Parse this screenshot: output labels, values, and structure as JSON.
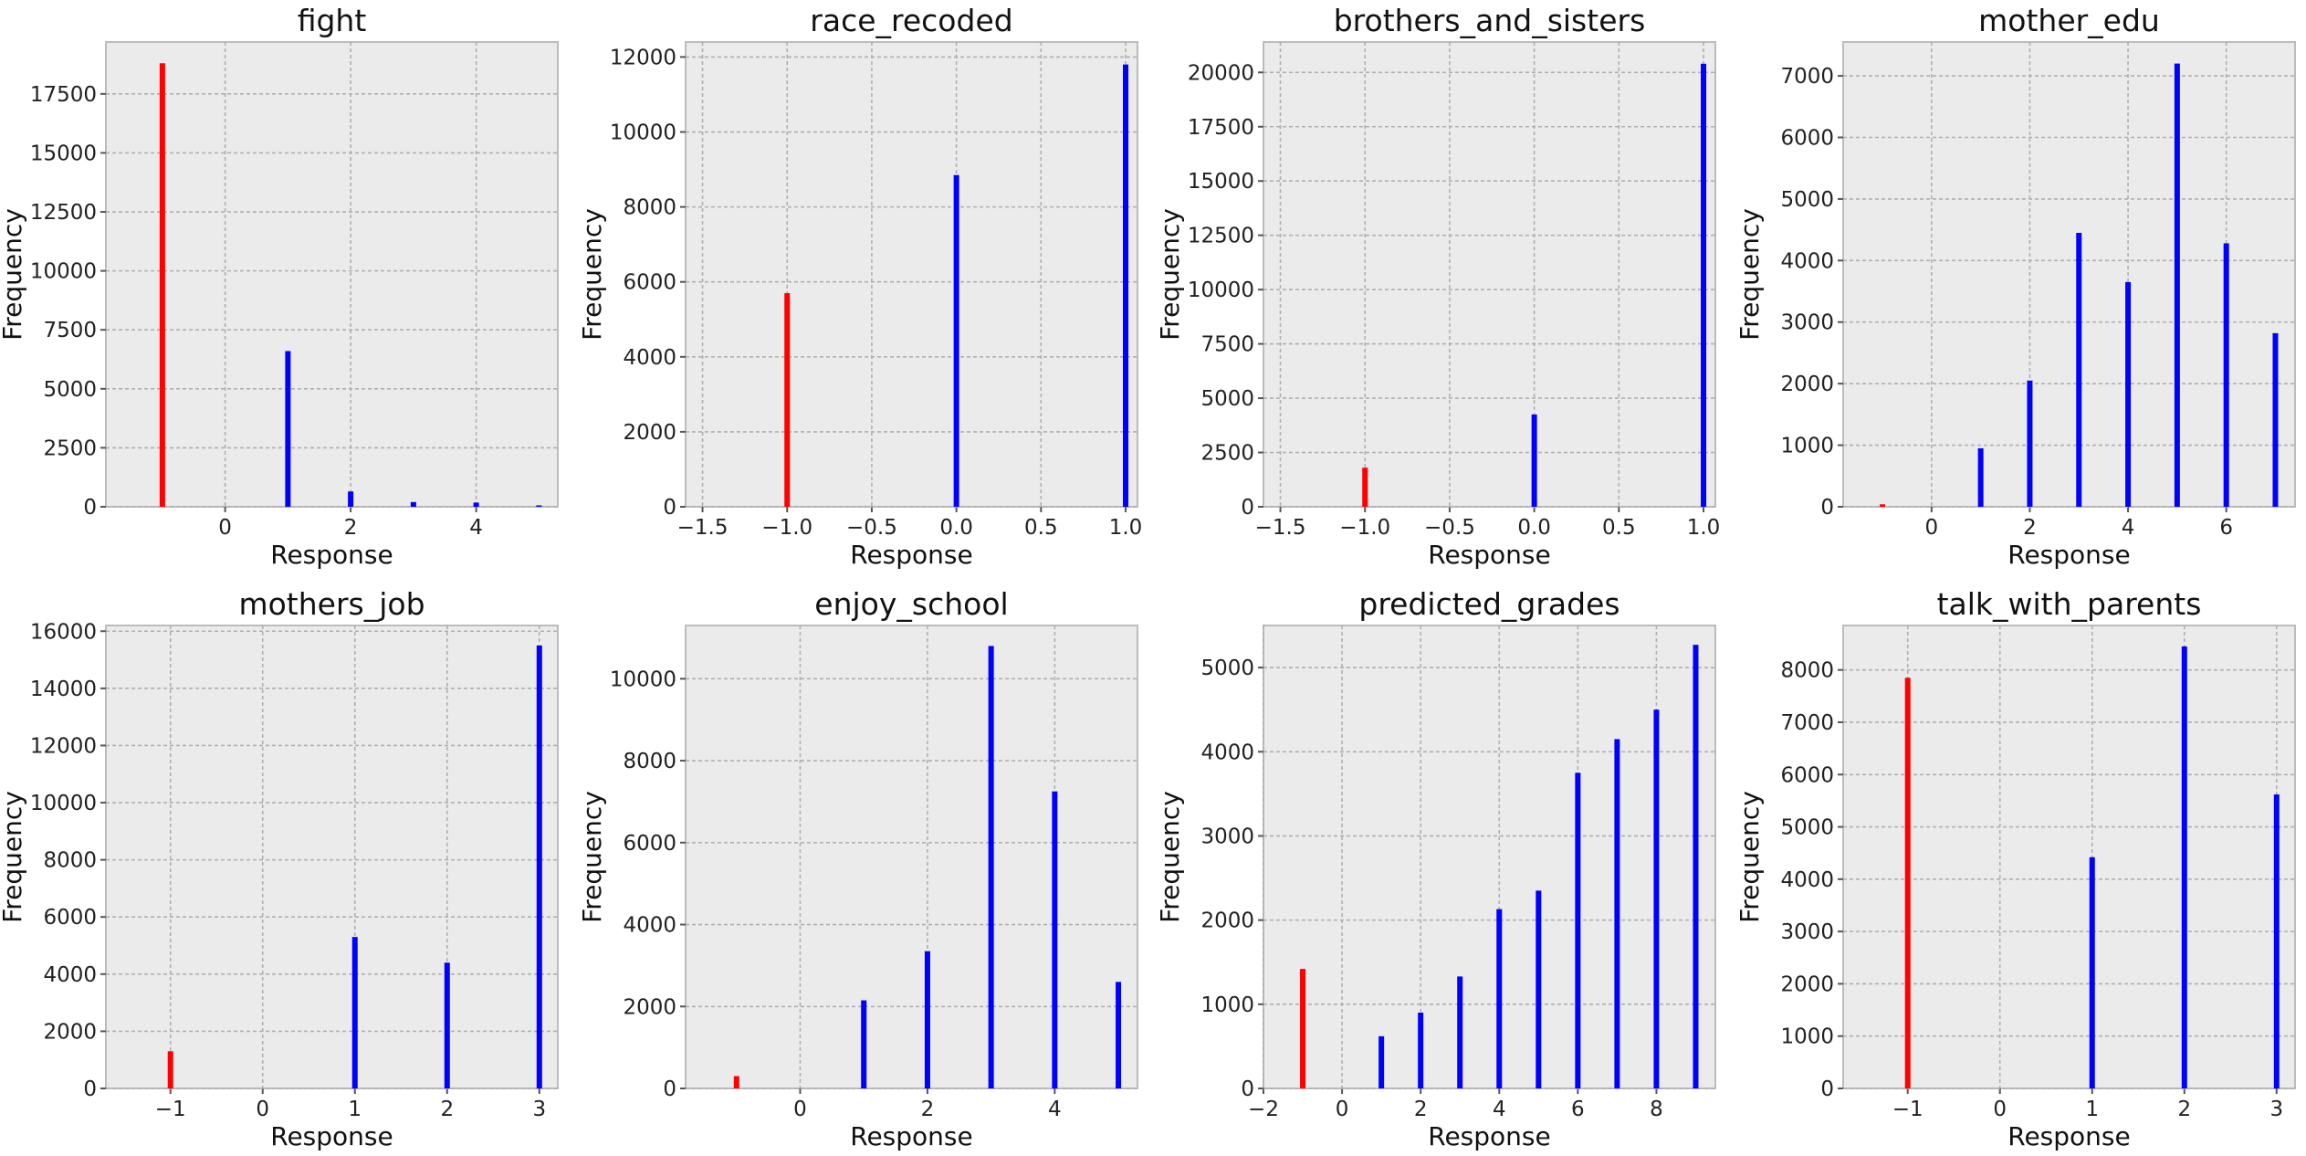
{
  "colors": {
    "missing": "#ff0000",
    "valid": "#0000ff",
    "panel_bg": "#ebebeb"
  },
  "chart_data": [
    {
      "type": "bar",
      "title": "fight",
      "xlabel": "Response",
      "ylabel": "Frequency",
      "xlim": [
        -1.9,
        5.3
      ],
      "ylim": [
        0,
        19700
      ],
      "xticks": [
        0,
        2,
        4
      ],
      "xtick_labels": [
        "0",
        "2",
        "4"
      ],
      "yticks": [
        0,
        2500,
        5000,
        7500,
        10000,
        12500,
        15000,
        17500
      ],
      "ytick_labels": [
        "0",
        "2500",
        "5000",
        "7500",
        "10000",
        "12500",
        "15000",
        "17500"
      ],
      "grid": true,
      "bars": [
        {
          "x": -1,
          "value": 18800,
          "color": "#ff0000"
        },
        {
          "x": 1,
          "value": 6600,
          "color": "#0000ff"
        },
        {
          "x": 2,
          "value": 650,
          "color": "#0000ff"
        },
        {
          "x": 3,
          "value": 200,
          "color": "#0000ff"
        },
        {
          "x": 4,
          "value": 180,
          "color": "#0000ff"
        },
        {
          "x": 5,
          "value": 60,
          "color": "#0000ff"
        }
      ]
    },
    {
      "type": "bar",
      "title": "race_recoded",
      "xlabel": "Response",
      "ylabel": "Frequency",
      "xlim": [
        -1.6,
        1.07
      ],
      "ylim": [
        0,
        12400
      ],
      "xticks": [
        -1.5,
        -1.0,
        -0.5,
        0.0,
        0.5,
        1.0
      ],
      "xtick_labels": [
        "−1.5",
        "−1.0",
        "−0.5",
        "0.0",
        "0.5",
        "1.0"
      ],
      "yticks": [
        0,
        2000,
        4000,
        6000,
        8000,
        10000,
        12000
      ],
      "ytick_labels": [
        "0",
        "2000",
        "4000",
        "6000",
        "8000",
        "10000",
        "12000"
      ],
      "grid": true,
      "bars": [
        {
          "x": -1,
          "value": 5700,
          "color": "#ff0000"
        },
        {
          "x": 0,
          "value": 8850,
          "color": "#0000ff"
        },
        {
          "x": 1,
          "value": 11800,
          "color": "#0000ff"
        }
      ]
    },
    {
      "type": "bar",
      "title": "brothers_and_sisters",
      "xlabel": "Response",
      "ylabel": "Frequency",
      "xlim": [
        -1.6,
        1.07
      ],
      "ylim": [
        0,
        21400
      ],
      "xticks": [
        -1.5,
        -1.0,
        -0.5,
        0.0,
        0.5,
        1.0
      ],
      "xtick_labels": [
        "−1.5",
        "−1.0",
        "−0.5",
        "0.0",
        "0.5",
        "1.0"
      ],
      "yticks": [
        0,
        2500,
        5000,
        7500,
        10000,
        12500,
        15000,
        17500,
        20000
      ],
      "ytick_labels": [
        "0",
        "2500",
        "5000",
        "7500",
        "10000",
        "12500",
        "15000",
        "17500",
        "20000"
      ],
      "grid": true,
      "bars": [
        {
          "x": -1,
          "value": 1800,
          "color": "#ff0000"
        },
        {
          "x": 0,
          "value": 4250,
          "color": "#0000ff"
        },
        {
          "x": 1,
          "value": 20400,
          "color": "#0000ff"
        }
      ]
    },
    {
      "type": "bar",
      "title": "mother_edu",
      "xlabel": "Response",
      "ylabel": "Frequency",
      "xlim": [
        -1.8,
        7.4
      ],
      "ylim": [
        0,
        7550
      ],
      "xticks": [
        0,
        2,
        4,
        6
      ],
      "xtick_labels": [
        "0",
        "2",
        "4",
        "6"
      ],
      "yticks": [
        0,
        1000,
        2000,
        3000,
        4000,
        5000,
        6000,
        7000
      ],
      "ytick_labels": [
        "0",
        "1000",
        "2000",
        "3000",
        "4000",
        "5000",
        "6000",
        "7000"
      ],
      "grid": true,
      "bars": [
        {
          "x": -1,
          "value": 40,
          "color": "#ff0000"
        },
        {
          "x": 1,
          "value": 950,
          "color": "#0000ff"
        },
        {
          "x": 2,
          "value": 2050,
          "color": "#0000ff"
        },
        {
          "x": 3,
          "value": 4450,
          "color": "#0000ff"
        },
        {
          "x": 4,
          "value": 3650,
          "color": "#0000ff"
        },
        {
          "x": 5,
          "value": 7200,
          "color": "#0000ff"
        },
        {
          "x": 6,
          "value": 4280,
          "color": "#0000ff"
        },
        {
          "x": 7,
          "value": 2820,
          "color": "#0000ff"
        }
      ]
    },
    {
      "type": "bar",
      "title": "mothers_job",
      "xlabel": "Response",
      "ylabel": "Frequency",
      "xlim": [
        -1.7,
        3.2
      ],
      "ylim": [
        0,
        16200
      ],
      "xticks": [
        -1,
        0,
        1,
        2,
        3
      ],
      "xtick_labels": [
        "−1",
        "0",
        "1",
        "2",
        "3"
      ],
      "yticks": [
        0,
        2000,
        4000,
        6000,
        8000,
        10000,
        12000,
        14000,
        16000
      ],
      "ytick_labels": [
        "0",
        "2000",
        "4000",
        "6000",
        "8000",
        "10000",
        "12000",
        "14000",
        "16000"
      ],
      "grid": true,
      "bars": [
        {
          "x": -1,
          "value": 1300,
          "color": "#ff0000"
        },
        {
          "x": 1,
          "value": 5300,
          "color": "#0000ff"
        },
        {
          "x": 2,
          "value": 4400,
          "color": "#0000ff"
        },
        {
          "x": 3,
          "value": 15500,
          "color": "#0000ff"
        }
      ]
    },
    {
      "type": "bar",
      "title": "enjoy_school",
      "xlabel": "Response",
      "ylabel": "Frequency",
      "xlim": [
        -1.8,
        5.3
      ],
      "ylim": [
        0,
        11300
      ],
      "xticks": [
        0,
        2,
        4
      ],
      "xtick_labels": [
        "0",
        "2",
        "4"
      ],
      "yticks": [
        0,
        2000,
        4000,
        6000,
        8000,
        10000
      ],
      "ytick_labels": [
        "0",
        "2000",
        "4000",
        "6000",
        "8000",
        "10000"
      ],
      "grid": true,
      "bars": [
        {
          "x": -1,
          "value": 300,
          "color": "#ff0000"
        },
        {
          "x": 1,
          "value": 2150,
          "color": "#0000ff"
        },
        {
          "x": 2,
          "value": 3350,
          "color": "#0000ff"
        },
        {
          "x": 3,
          "value": 10800,
          "color": "#0000ff"
        },
        {
          "x": 4,
          "value": 7250,
          "color": "#0000ff"
        },
        {
          "x": 5,
          "value": 2600,
          "color": "#0000ff"
        }
      ]
    },
    {
      "type": "bar",
      "title": "predicted_grades",
      "xlabel": "Response",
      "ylabel": "Frequency",
      "xlim": [
        -2.0,
        9.5
      ],
      "ylim": [
        0,
        5500
      ],
      "xticks": [
        -2,
        0,
        2,
        4,
        6,
        8
      ],
      "xtick_labels": [
        "−2",
        "0",
        "2",
        "4",
        "6",
        "8"
      ],
      "yticks": [
        0,
        1000,
        2000,
        3000,
        4000,
        5000
      ],
      "ytick_labels": [
        "0",
        "1000",
        "2000",
        "3000",
        "4000",
        "5000"
      ],
      "grid": true,
      "bars": [
        {
          "x": -1,
          "value": 1420,
          "color": "#ff0000"
        },
        {
          "x": 1,
          "value": 620,
          "color": "#0000ff"
        },
        {
          "x": 2,
          "value": 900,
          "color": "#0000ff"
        },
        {
          "x": 3,
          "value": 1330,
          "color": "#0000ff"
        },
        {
          "x": 4,
          "value": 2130,
          "color": "#0000ff"
        },
        {
          "x": 5,
          "value": 2350,
          "color": "#0000ff"
        },
        {
          "x": 6,
          "value": 3750,
          "color": "#0000ff"
        },
        {
          "x": 7,
          "value": 4150,
          "color": "#0000ff"
        },
        {
          "x": 8,
          "value": 4500,
          "color": "#0000ff"
        },
        {
          "x": 9,
          "value": 5270,
          "color": "#0000ff"
        }
      ]
    },
    {
      "type": "bar",
      "title": "talk_with_parents",
      "xlabel": "Response",
      "ylabel": "Frequency",
      "xlim": [
        -1.7,
        3.2
      ],
      "ylim": [
        0,
        8850
      ],
      "xticks": [
        -1,
        0,
        1,
        2,
        3
      ],
      "xtick_labels": [
        "−1",
        "0",
        "1",
        "2",
        "3"
      ],
      "yticks": [
        0,
        1000,
        2000,
        3000,
        4000,
        5000,
        6000,
        7000,
        8000
      ],
      "ytick_labels": [
        "0",
        "1000",
        "2000",
        "3000",
        "4000",
        "5000",
        "6000",
        "7000",
        "8000"
      ],
      "grid": true,
      "bars": [
        {
          "x": -1,
          "value": 7850,
          "color": "#ff0000"
        },
        {
          "x": 1,
          "value": 4420,
          "color": "#0000ff"
        },
        {
          "x": 2,
          "value": 8450,
          "color": "#0000ff"
        },
        {
          "x": 3,
          "value": 5620,
          "color": "#0000ff"
        }
      ]
    }
  ]
}
